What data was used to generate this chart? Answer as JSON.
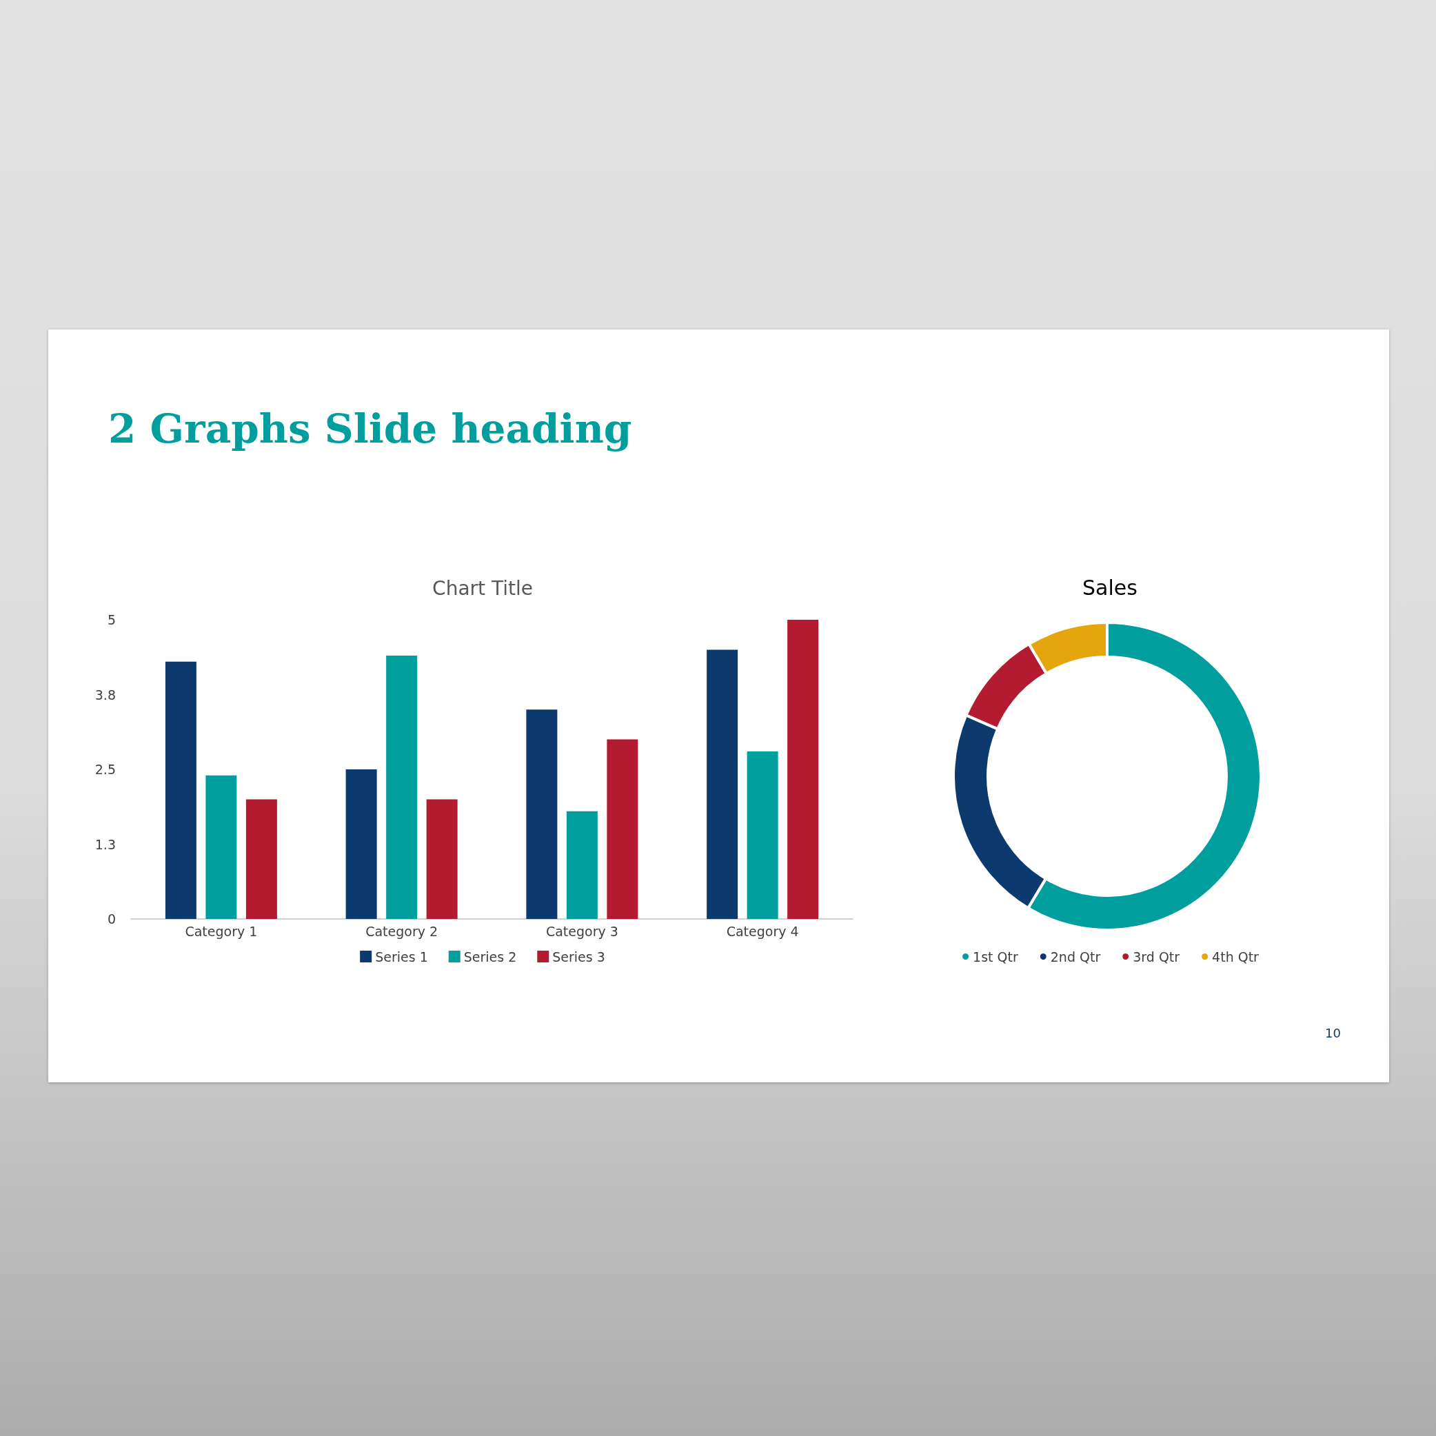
{
  "chart_data": [
    {
      "type": "bar",
      "title": "Chart Title",
      "categories": [
        "Category 1",
        "Category 2",
        "Category 3",
        "Category 4"
      ],
      "series": [
        {
          "name": "Series 1",
          "color": "#0d3a6e",
          "values": [
            4.3,
            2.5,
            3.5,
            4.5
          ]
        },
        {
          "name": "Series 2",
          "color": "#009e9c",
          "values": [
            2.4,
            4.4,
            1.8,
            2.8
          ]
        },
        {
          "name": "Series 3",
          "color": "#b41b30",
          "values": [
            2,
            2,
            3,
            5
          ]
        }
      ],
      "ylim": [
        0,
        5
      ],
      "yticks": [
        0,
        {
          "value": 1.25,
          "label": "1.3"
        },
        2.5,
        {
          "value": 3.75,
          "label": "3.8"
        },
        5
      ],
      "legend": "bottom",
      "annotations": [
        "2 Graphs Slide heading"
      ]
    },
    {
      "type": "donut",
      "title": "Sales",
      "categories": [
        "1st Qtr",
        "2nd Qtr",
        "3rd Qtr",
        "4th Qtr"
      ],
      "values": [
        58.6,
        22.9,
        10.0,
        8.5
      ],
      "colors": [
        "#009e9c",
        "#0d3a6e",
        "#b41b30",
        "#e5a50d"
      ],
      "legend": "bottom",
      "annotations": [
        "10"
      ]
    }
  ]
}
